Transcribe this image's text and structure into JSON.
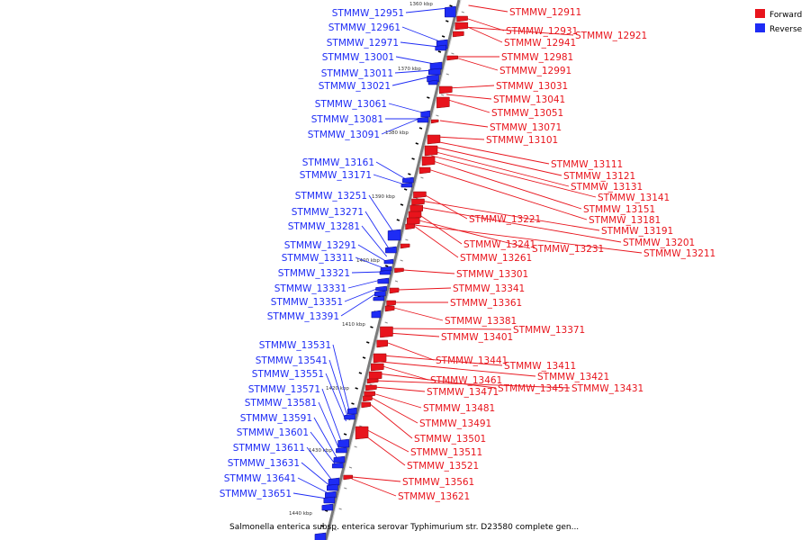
{
  "colors": {
    "forward": "#e8141c",
    "reverse": "#1e2cf5",
    "axis": "#7a7a7a",
    "tick": "#000000"
  },
  "legend": [
    {
      "label": "Forward",
      "color": "#e8141c"
    },
    {
      "label": "Reverse",
      "color": "#1e2cf5"
    }
  ],
  "caption": "Salmonella enterica subsp. enterica serovar Typhimurium str. D23580 complete gen...",
  "kbp_labels": [
    "1360 kbp",
    "1370 kbp",
    "1380 kbp",
    "1390 kbp",
    "1400 kbp",
    "1410 kbp",
    "1420 kbp",
    "1430 kbp",
    "1440 kbp"
  ],
  "reverse_genes": [
    "STMMW_12951",
    "STMMW_12961",
    "STMMW_12971",
    "STMMW_13001",
    "STMMW_13011",
    "STMMW_13021",
    "STMMW_13061",
    "STMMW_13081",
    "STMMW_13091",
    "STMMW_13161",
    "STMMW_13171",
    "STMMW_13251",
    "STMMW_13271",
    "STMMW_13281",
    "STMMW_13291",
    "STMMW_13311",
    "STMMW_13321",
    "STMMW_13331",
    "STMMW_13351",
    "STMMW_13391",
    "STMMW_13531",
    "STMMW_13541",
    "STMMW_13551",
    "STMMW_13571",
    "STMMW_13581",
    "STMMW_13591",
    "STMMW_13601",
    "STMMW_13611",
    "STMMW_13631",
    "STMMW_13641",
    "STMMW_13651"
  ],
  "forward_genes": [
    "STMMW_12911",
    "STMMW_12931",
    "STMMW_12941",
    "STMMW_12921",
    "STMMW_12981",
    "STMMW_12991",
    "STMMW_13031",
    "STMMW_13041",
    "STMMW_13051",
    "STMMW_13071",
    "STMMW_13101",
    "STMMW_13111",
    "STMMW_13121",
    "STMMW_13131",
    "STMMW_13141",
    "STMMW_13151",
    "STMMW_13181",
    "STMMW_13221",
    "STMMW_13191",
    "STMMW_13201",
    "STMMW_13241",
    "STMMW_13231",
    "STMMW_13211",
    "STMMW_13261",
    "STMMW_13301",
    "STMMW_13341",
    "STMMW_13361",
    "STMMW_13381",
    "STMMW_13371",
    "STMMW_13401",
    "STMMW_13441",
    "STMMW_13411",
    "STMMW_13421",
    "STMMW_13461",
    "STMMW_13451",
    "STMMW_13431",
    "STMMW_13471",
    "STMMW_13481",
    "STMMW_13491",
    "STMMW_13501",
    "STMMW_13511",
    "STMMW_13521",
    "STMMW_13561",
    "STMMW_13621"
  ]
}
